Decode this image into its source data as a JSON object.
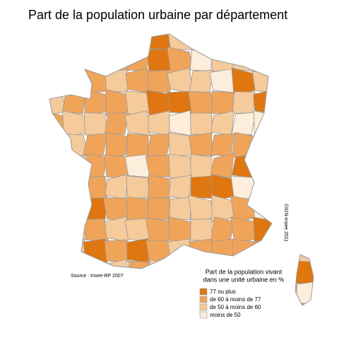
{
  "title": "Part de la population urbaine par département",
  "legend": {
    "title": [
      "Part de la population vivant",
      "dans une unité urbaine en %"
    ],
    "items": [
      {
        "label": "77 ou plus",
        "color": "#e0760f"
      },
      {
        "label": "de 60 à moins de 77",
        "color": "#f0a45a"
      },
      {
        "label": "de 50 à moins de 60",
        "color": "#f5cb9c"
      },
      {
        "label": "moins de 50",
        "color": "#fdeddb"
      }
    ]
  },
  "source": "Source : Insee-RP 2007",
  "credit": "©IGN-Insee 2011"
}
